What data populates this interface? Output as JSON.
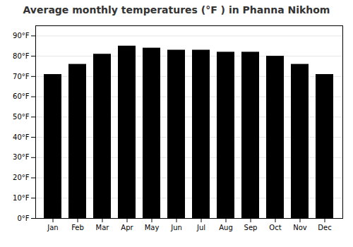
{
  "chart_data": {
    "type": "bar",
    "title": "Average monthly temperatures (°F ) in Phanna Nikhom",
    "categories": [
      "Jan",
      "Feb",
      "Mar",
      "Apr",
      "May",
      "Jun",
      "Jul",
      "Aug",
      "Sep",
      "Oct",
      "Nov",
      "Dec"
    ],
    "values": [
      71,
      76,
      81,
      85,
      84,
      83,
      83,
      82,
      82,
      80,
      76,
      71
    ],
    "ylim": [
      0,
      95
    ],
    "yticks": [
      {
        "value": 0,
        "label": "0°F"
      },
      {
        "value": 10,
        "label": "10°F"
      },
      {
        "value": 20,
        "label": "20°F"
      },
      {
        "value": 30,
        "label": "30°F"
      },
      {
        "value": 40,
        "label": "40°F"
      },
      {
        "value": 50,
        "label": "50°F"
      },
      {
        "value": 60,
        "label": "60°F"
      },
      {
        "value": 70,
        "label": "70°F"
      },
      {
        "value": 80,
        "label": "80°F"
      },
      {
        "value": 90,
        "label": "90°F"
      }
    ],
    "grid": true
  }
}
